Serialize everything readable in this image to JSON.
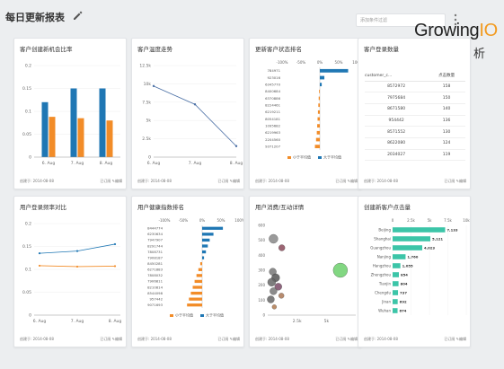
{
  "dashboard": {
    "title": "每日更新报表",
    "filter_placeholder": "添加条件过滤"
  },
  "brand": {
    "name_a": "Growing",
    "name_b": "IO",
    "subtitle": "数据分析"
  },
  "footer": {
    "created_label": "创建于:",
    "date": "2014-08-08",
    "subscribe": "已订阅",
    "edit": "编辑"
  },
  "colors": {
    "blue": "#1f77b4",
    "orange": "#f28c28",
    "teal": "#3cc5a8",
    "green": "#6cd06c"
  },
  "cards": [
    {
      "title": "客户创建新机会比率"
    },
    {
      "title": "客户温度走势"
    },
    {
      "title": "更新客户状态排名"
    },
    {
      "title": "客户登录数量"
    },
    {
      "title": "用户登录频率对比"
    },
    {
      "title": "用户健康指数排名"
    },
    {
      "title": "用户消费/互动详情"
    },
    {
      "title": "创建新客户点击量"
    }
  ],
  "table": {
    "col1": "customer_c...",
    "col2": "点击数量",
    "rows": [
      {
        "id": "8572972",
        "value": "158"
      },
      {
        "id": "7975684",
        "value": "150"
      },
      {
        "id": "8671580",
        "value": "140"
      },
      {
        "id": "954442",
        "value": "136"
      },
      {
        "id": "8571552",
        "value": "130"
      },
      {
        "id": "8622080",
        "value": "124"
      },
      {
        "id": "2034027",
        "value": "119"
      }
    ]
  },
  "chart_data": [
    {
      "type": "bar",
      "card": "客户创建新机会比率",
      "categories": [
        "6. Aug",
        "7. Aug",
        "8. Aug"
      ],
      "ylim": [
        0,
        0.2
      ],
      "yticks": [
        "0",
        "0.05",
        "0.1",
        "0.15",
        "0.2"
      ],
      "series": [
        {
          "color": "#1f77b4",
          "values": [
            0.12,
            0.15,
            0.15
          ]
        },
        {
          "color": "#f28c28",
          "values": [
            0.088,
            0.085,
            0.08
          ]
        }
      ]
    },
    {
      "type": "line",
      "card": "客户温度走势",
      "categories": [
        "6. Aug",
        "7. Aug",
        "8. Aug"
      ],
      "ylim": [
        0,
        12500
      ],
      "yticks": [
        "0",
        "2.5k",
        "5k",
        "7.5k",
        "10k",
        "12.5k"
      ],
      "values": [
        9700,
        7200,
        1500
      ]
    },
    {
      "type": "bar",
      "card": "更新客户状态排名",
      "orientation": "horizontal-diverging",
      "xticks": [
        "-100%",
        "-50%",
        "0%",
        "50%",
        "100%"
      ],
      "categories": [
        "784971",
        "923016",
        "6345770",
        "8400684",
        "6370886",
        "8224461",
        "6219211",
        "8054181",
        "1095682",
        "6219963",
        "2204560",
        "9371207"
      ],
      "values": [
        0.75,
        0.12,
        0.05,
        -0.02,
        -0.03,
        -0.04,
        -0.05,
        -0.06,
        -0.07,
        -0.08,
        -0.1,
        -0.13
      ],
      "legend": [
        "小于平均值",
        "大于平均值"
      ]
    },
    {
      "type": "line",
      "card": "用户登录频率对比",
      "categories": [
        "6. Aug",
        "7. Aug",
        "8. Aug"
      ],
      "ylim": [
        0,
        0.2
      ],
      "yticks": [
        "0",
        "0.05",
        "0.1",
        "0.15",
        "0.2"
      ],
      "series": [
        {
          "color": "#1f77b4",
          "values": [
            0.135,
            0.14,
            0.155
          ]
        },
        {
          "color": "#f28c28",
          "values": [
            0.108,
            0.106,
            0.107
          ]
        }
      ]
    },
    {
      "type": "bar",
      "card": "用户健康指数排名",
      "orientation": "horizontal-diverging",
      "xticks": [
        "-100%",
        "-50%",
        "0%",
        "50%",
        "100%"
      ],
      "categories": [
        "8444774",
        "6230634",
        "7947907",
        "8291744",
        "7808731",
        "7908187",
        "8450281",
        "6271883",
        "7808032",
        "7906811",
        "8210814",
        "8544098",
        "957442",
        "9071693"
      ],
      "values": [
        0.55,
        0.3,
        0.2,
        0.15,
        0.1,
        0.05,
        -0.05,
        -0.1,
        -0.15,
        -0.2,
        -0.25,
        -0.3,
        -0.35,
        -0.4
      ],
      "legend": [
        "小于平均值",
        "大于平均值"
      ]
    },
    {
      "type": "scatter",
      "card": "用户消费/互动详情",
      "xlim": [
        0,
        4000
      ],
      "ylim": [
        0,
        600
      ],
      "xticks": [
        "2.5k",
        "5k"
      ],
      "yticks": [
        "0",
        "100",
        "200",
        "300",
        "400",
        "500",
        "600"
      ],
      "points": [
        {
          "x": 260,
          "y": 510,
          "r": 5,
          "color": "#888888"
        },
        {
          "x": 640,
          "y": 450,
          "r": 3.5,
          "color": "#8b4a5a"
        },
        {
          "x": 3300,
          "y": 300,
          "r": 8,
          "color": "#6cd06c"
        },
        {
          "x": 230,
          "y": 290,
          "r": 4,
          "color": "#777777"
        },
        {
          "x": 360,
          "y": 250,
          "r": 4.5,
          "color": "#555555"
        },
        {
          "x": 180,
          "y": 220,
          "r": 4.5,
          "color": "#666666"
        },
        {
          "x": 480,
          "y": 190,
          "r": 4,
          "color": "#7a4a66"
        },
        {
          "x": 260,
          "y": 160,
          "r": 4,
          "color": "#777777"
        },
        {
          "x": 620,
          "y": 130,
          "r": 3,
          "color": "#aa7755"
        },
        {
          "x": 140,
          "y": 105,
          "r": 4,
          "color": "#666666"
        },
        {
          "x": 300,
          "y": 55,
          "r": 2.5,
          "color": "#b07a50"
        }
      ]
    },
    {
      "type": "bar",
      "card": "创建新客户点击量",
      "orientation": "horizontal",
      "xticks": [
        "0",
        "2.5k",
        "5k",
        "7.5k",
        "10k"
      ],
      "xlim": [
        0,
        10000
      ],
      "categories": [
        "Beijing",
        "Shanghai",
        "Guangzhou",
        "Nanjing",
        "Hangzhou",
        "Zhengzhou",
        "Tianjin",
        "Chengdu",
        "Jinan",
        "Wuhan"
      ],
      "values": [
        7133,
        5121,
        4023,
        1760,
        1055,
        854,
        804,
        737,
        692,
        674
      ],
      "labels": [
        "7,133",
        "5,121",
        "4,023",
        "1,760",
        "1,055",
        "854",
        "804",
        "737",
        "692",
        "674"
      ],
      "color": "#3cc5a8"
    }
  ]
}
